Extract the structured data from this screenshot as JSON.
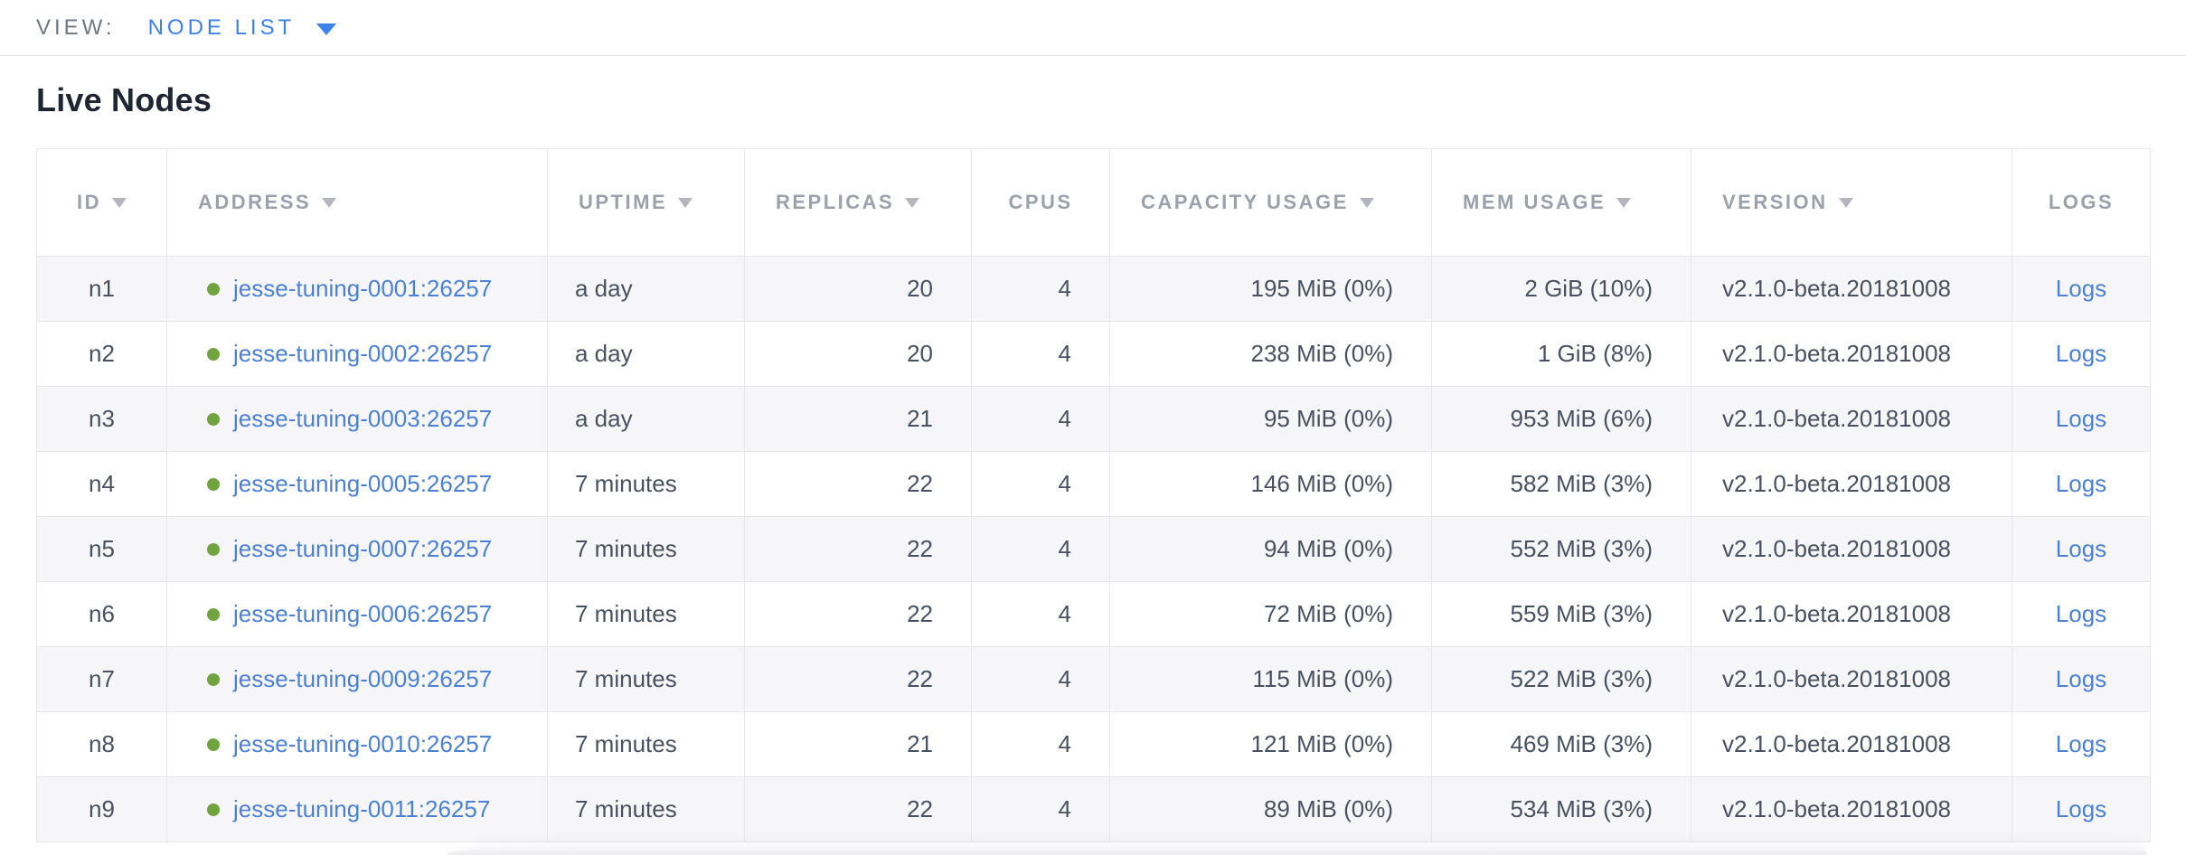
{
  "colors": {
    "view_label_gray": "#6e7885",
    "view_link_blue": "#3d82ec",
    "title_text": "#1e2633",
    "header_gray": "#9ba1ab",
    "cell_text": "#475161",
    "link_blue": "#4a80d8",
    "live_green": "#72a341",
    "row_stripe": "#f6f6f8",
    "border": "#e8e8ea"
  },
  "view_bar": {
    "label": "VIEW:",
    "selected_view": "NODE LIST",
    "caret_icon": "triangle-down"
  },
  "page": {
    "title": "Live Nodes"
  },
  "table": {
    "columns": [
      {
        "key": "id",
        "label": "ID",
        "sortable": true
      },
      {
        "key": "address",
        "label": "ADDRESS",
        "sortable": true
      },
      {
        "key": "uptime",
        "label": "UPTIME",
        "sortable": true
      },
      {
        "key": "replicas",
        "label": "REPLICAS",
        "sortable": true
      },
      {
        "key": "cpus",
        "label": "CPUS",
        "sortable": false
      },
      {
        "key": "capacity",
        "label": "CAPACITY USAGE",
        "sortable": true
      },
      {
        "key": "mem",
        "label": "MEM USAGE",
        "sortable": true
      },
      {
        "key": "version",
        "label": "VERSION",
        "sortable": true
      },
      {
        "key": "logs",
        "label": "LOGS",
        "sortable": false
      }
    ],
    "rows": [
      {
        "id": "n1",
        "status": "live",
        "address": "jesse-tuning-0001:26257",
        "uptime": "a day",
        "replicas": "20",
        "cpus": "4",
        "capacity": "195 MiB (0%)",
        "mem": "2 GiB (10%)",
        "version": "v2.1.0-beta.20181008",
        "logs": "Logs"
      },
      {
        "id": "n2",
        "status": "live",
        "address": "jesse-tuning-0002:26257",
        "uptime": "a day",
        "replicas": "20",
        "cpus": "4",
        "capacity": "238 MiB (0%)",
        "mem": "1 GiB (8%)",
        "version": "v2.1.0-beta.20181008",
        "logs": "Logs"
      },
      {
        "id": "n3",
        "status": "live",
        "address": "jesse-tuning-0003:26257",
        "uptime": "a day",
        "replicas": "21",
        "cpus": "4",
        "capacity": "95 MiB (0%)",
        "mem": "953 MiB (6%)",
        "version": "v2.1.0-beta.20181008",
        "logs": "Logs"
      },
      {
        "id": "n4",
        "status": "live",
        "address": "jesse-tuning-0005:26257",
        "uptime": "7 minutes",
        "replicas": "22",
        "cpus": "4",
        "capacity": "146 MiB (0%)",
        "mem": "582 MiB (3%)",
        "version": "v2.1.0-beta.20181008",
        "logs": "Logs"
      },
      {
        "id": "n5",
        "status": "live",
        "address": "jesse-tuning-0007:26257",
        "uptime": "7 minutes",
        "replicas": "22",
        "cpus": "4",
        "capacity": "94 MiB (0%)",
        "mem": "552 MiB (3%)",
        "version": "v2.1.0-beta.20181008",
        "logs": "Logs"
      },
      {
        "id": "n6",
        "status": "live",
        "address": "jesse-tuning-0006:26257",
        "uptime": "7 minutes",
        "replicas": "22",
        "cpus": "4",
        "capacity": "72 MiB (0%)",
        "mem": "559 MiB (3%)",
        "version": "v2.1.0-beta.20181008",
        "logs": "Logs"
      },
      {
        "id": "n7",
        "status": "live",
        "address": "jesse-tuning-0009:26257",
        "uptime": "7 minutes",
        "replicas": "22",
        "cpus": "4",
        "capacity": "115 MiB (0%)",
        "mem": "522 MiB (3%)",
        "version": "v2.1.0-beta.20181008",
        "logs": "Logs"
      },
      {
        "id": "n8",
        "status": "live",
        "address": "jesse-tuning-0010:26257",
        "uptime": "7 minutes",
        "replicas": "21",
        "cpus": "4",
        "capacity": "121 MiB (0%)",
        "mem": "469 MiB (3%)",
        "version": "v2.1.0-beta.20181008",
        "logs": "Logs"
      },
      {
        "id": "n9",
        "status": "live",
        "address": "jesse-tuning-0011:26257",
        "uptime": "7 minutes",
        "replicas": "22",
        "cpus": "4",
        "capacity": "89 MiB (0%)",
        "mem": "534 MiB (3%)",
        "version": "v2.1.0-beta.20181008",
        "logs": "Logs"
      }
    ]
  }
}
